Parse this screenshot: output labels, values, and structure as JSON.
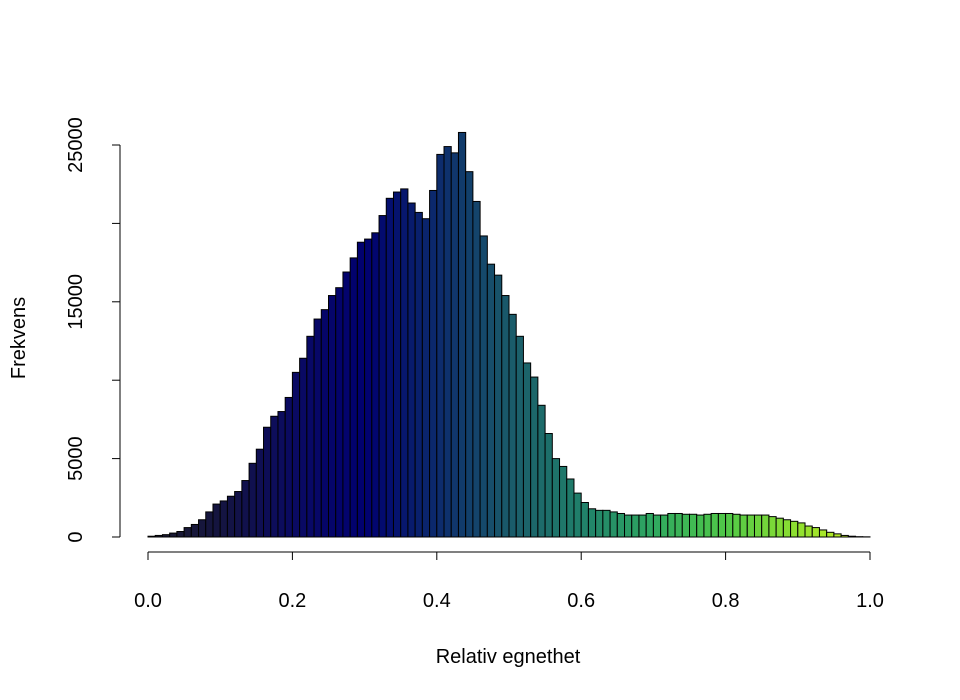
{
  "chart_data": {
    "type": "bar",
    "subtype": "histogram",
    "title": "",
    "xlabel": "Relativ egnethet",
    "ylabel": "Frekvens",
    "xlim": [
      0,
      1
    ],
    "ylim": [
      0,
      25000
    ],
    "grid": false,
    "legend": "none",
    "x_ticks": [
      "0.0",
      "0.2",
      "0.4",
      "0.6",
      "0.8",
      "1.0"
    ],
    "y_ticks": [
      "0",
      "5000",
      "15000",
      "25000"
    ],
    "bin_width": 0.01,
    "bin_start": 0.0,
    "values": [
      50,
      100,
      150,
      250,
      350,
      600,
      800,
      1100,
      1600,
      2100,
      2300,
      2600,
      2900,
      3600,
      4700,
      5600,
      7000,
      7700,
      8000,
      8900,
      10500,
      11400,
      12800,
      13900,
      14500,
      15400,
      15900,
      16900,
      17800,
      18800,
      19000,
      19400,
      20500,
      21600,
      22000,
      22200,
      21300,
      20700,
      20300,
      22100,
      24400,
      24900,
      24500,
      25800,
      23300,
      21400,
      19200,
      17400,
      16700,
      15400,
      14200,
      12800,
      11100,
      10200,
      8400,
      6600,
      5000,
      4500,
      3700,
      2800,
      2200,
      1800,
      1700,
      1700,
      1600,
      1500,
      1400,
      1400,
      1400,
      1500,
      1400,
      1400,
      1500,
      1500,
      1450,
      1450,
      1400,
      1450,
      1500,
      1500,
      1500,
      1450,
      1400,
      1400,
      1400,
      1400,
      1300,
      1200,
      1100,
      1000,
      900,
      700,
      600,
      450,
      300,
      200,
      100,
      50,
      20,
      10
    ],
    "colormap": [
      "#1c1c2e",
      "#141440",
      "#0a0a62",
      "#000070",
      "#0c2a6c",
      "#1a5a6a",
      "#20806a",
      "#2fa860",
      "#50c848",
      "#90e030",
      "#d0f020"
    ]
  }
}
